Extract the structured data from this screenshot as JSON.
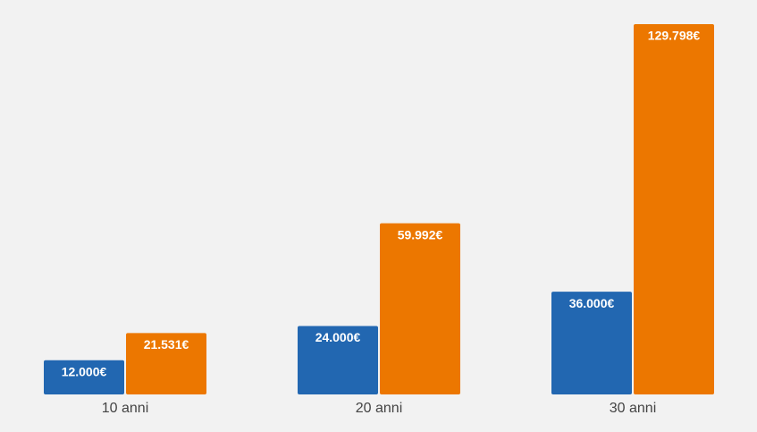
{
  "chart_data": {
    "type": "bar",
    "categories": [
      "10 anni",
      "20 anni",
      "30 anni"
    ],
    "series": [
      {
        "color": "#2267b1",
        "values": [
          12000,
          24000,
          36000
        ],
        "value_labels": [
          "12.000€",
          "24.000€",
          "36.000€"
        ]
      },
      {
        "color": "#ec7700",
        "values": [
          21531,
          59992,
          129798
        ],
        "value_labels": [
          "21.531€",
          "59.992€",
          "129.798€"
        ]
      }
    ]
  }
}
